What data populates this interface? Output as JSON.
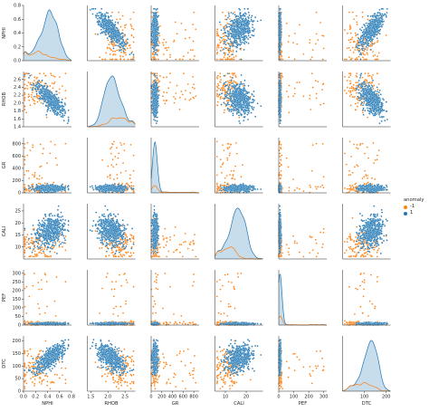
{
  "chart_data": {
    "type": "pairplot",
    "variables": [
      "NPHI",
      "RHOB",
      "GR",
      "CALI",
      "PEF",
      "DTC"
    ],
    "ranges": {
      "NPHI": [
        0.0,
        0.8
      ],
      "RHOB": [
        1.4,
        2.8
      ],
      "GR": [
        0,
        900
      ],
      "CALI": [
        5,
        28
      ],
      "PEF": [
        0,
        320
      ],
      "DTC": [
        0,
        220
      ]
    },
    "ticks": {
      "NPHI": [
        "0.0",
        "0.2",
        "0.4",
        "0.6",
        "0.8"
      ],
      "NPHI_vals": [
        0.0,
        0.2,
        0.4,
        0.6,
        0.8
      ],
      "RHOB_x": [
        "1.5",
        "2.0",
        "2.5"
      ],
      "RHOB_x_vals": [
        1.5,
        2.0,
        2.5
      ],
      "RHOB_y": [
        "1.4",
        "1.6",
        "1.8",
        "2.0",
        "2.2",
        "2.4",
        "2.6"
      ],
      "RHOB_y_vals": [
        1.4,
        1.6,
        1.8,
        2.0,
        2.2,
        2.4,
        2.6
      ],
      "GR": [
        "0",
        "200",
        "400",
        "600",
        "800"
      ],
      "GR_vals": [
        0,
        200,
        400,
        600,
        800
      ],
      "CALI_x": [
        "10",
        "20"
      ],
      "CALI_x_vals": [
        10,
        20
      ],
      "CALI_y": [
        "10",
        "15",
        "20",
        "25"
      ],
      "CALI_y_vals": [
        10,
        15,
        20,
        25
      ],
      "PEF": [
        "0",
        "100",
        "200",
        "300"
      ],
      "PEF_y": [
        "0",
        "50",
        "100",
        "150",
        "200",
        "250",
        "300"
      ],
      "PEF_y_vals": [
        0,
        50,
        100,
        150,
        200,
        250,
        300
      ],
      "PEF_vals": [
        0,
        100,
        200,
        300
      ],
      "DTC_x": [
        "100",
        "200"
      ],
      "DTC_x_vals": [
        100,
        200
      ],
      "DTC_y": [
        "0",
        "50",
        "100",
        "150",
        "200"
      ],
      "DTC_y_vals": [
        0,
        50,
        100,
        150,
        200
      ]
    },
    "legend": {
      "title": "anomaly",
      "entries": [
        {
          "label": "-1",
          "color": "#ff7f0e"
        },
        {
          "label": "1",
          "color": "#1f77b4"
        }
      ]
    },
    "grid": false
  }
}
